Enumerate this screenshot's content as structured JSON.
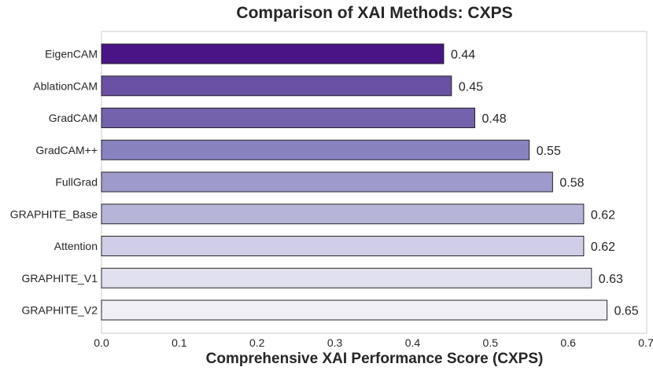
{
  "chart_data": {
    "type": "bar",
    "orientation": "horizontal",
    "title": "Comparison of XAI Methods: CXPS",
    "xlabel": "Comprehensive XAI Performance Score (CXPS)",
    "ylabel": "",
    "xlim": [
      0,
      0.7
    ],
    "xticks": [
      0.0,
      0.1,
      0.2,
      0.3,
      0.4,
      0.5,
      0.6,
      0.7
    ],
    "xtick_labels": [
      "0.0",
      "0.1",
      "0.2",
      "0.3",
      "0.4",
      "0.5",
      "0.6",
      "0.7"
    ],
    "grid": false,
    "categories": [
      "EigenCAM",
      "AblationCAM",
      "GradCAM",
      "GradCAM++",
      "FullGrad",
      "GRAPHITE_Base",
      "Attention",
      "GRAPHITE_V1",
      "GRAPHITE_V2"
    ],
    "values": [
      0.44,
      0.45,
      0.48,
      0.55,
      0.58,
      0.62,
      0.62,
      0.63,
      0.65
    ],
    "value_labels": [
      "0.44",
      "0.45",
      "0.48",
      "0.55",
      "0.58",
      "0.62",
      "0.62",
      "0.63",
      "0.65"
    ],
    "colors": [
      "#4a1486",
      "#6a51a3",
      "#7462ac",
      "#8683bf",
      "#9e9acb",
      "#b6b5d8",
      "#cfcee6",
      "#e1e0ef",
      "#f0eff6"
    ],
    "edge_color": "#262626",
    "frame_color": "#cccccc"
  }
}
